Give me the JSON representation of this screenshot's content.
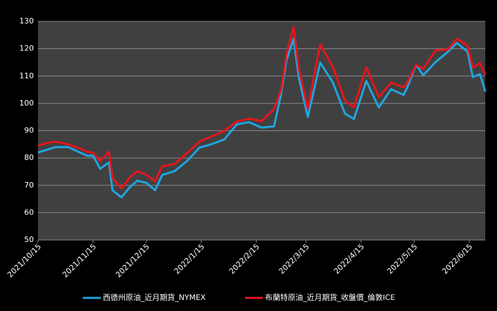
{
  "chart_data": {
    "type": "line",
    "x": [
      "2021/10/15",
      "2021/10/20",
      "2021/10/25",
      "2021/11/01",
      "2021/11/08",
      "2021/11/12",
      "2021/11/15",
      "2021/11/19",
      "2021/11/24",
      "2021/11/26",
      "2021/12/01",
      "2021/12/06",
      "2021/12/10",
      "2021/12/15",
      "2021/12/20",
      "2021/12/24",
      "2021/12/31",
      "2022/01/07",
      "2022/01/14",
      "2022/01/21",
      "2022/01/28",
      "2022/02/04",
      "2022/02/11",
      "2022/02/18",
      "2022/02/25",
      "2022/03/01",
      "2022/03/04",
      "2022/03/08",
      "2022/03/11",
      "2022/03/16",
      "2022/03/23",
      "2022/03/30",
      "2022/04/06",
      "2022/04/11",
      "2022/04/18",
      "2022/04/25",
      "2022/05/02",
      "2022/05/09",
      "2022/05/11",
      "2022/05/16",
      "2022/05/20",
      "2022/05/27",
      "2022/06/03",
      "2022/06/08",
      "2022/06/14",
      "2022/06/17",
      "2022/06/21",
      "2022/06/24"
    ],
    "series": [
      {
        "name": "西德州原油_近月期貨_NYMEX",
        "color": "#1fa6e0",
        "values": [
          82,
          83,
          84,
          84,
          81.9,
          80.8,
          80.9,
          76.1,
          78.4,
          68.2,
          65.6,
          69.5,
          71.7,
          70.9,
          68.2,
          73.8,
          75.2,
          78.9,
          83.8,
          85.1,
          86.8,
          92.3,
          93.1,
          91.1,
          91.6,
          103.4,
          115.7,
          123.7,
          109.3,
          95,
          114.9,
          107.8,
          96.2,
          94.3,
          108.2,
          98.5,
          105.2,
          103.1,
          105.7,
          114.2,
          110.3,
          115.1,
          118.9,
          122.1,
          118.9,
          109.6,
          110.7,
          104.3
        ]
      },
      {
        "name": "布蘭特原油_近月期貨_收盤價_倫敦ICE",
        "color": "#e8141c",
        "values": [
          84.5,
          85.5,
          86,
          85,
          83.4,
          82.2,
          82,
          78.9,
          82.3,
          72.7,
          68.9,
          73,
          75.2,
          73.9,
          71.5,
          76.9,
          77.8,
          81.8,
          86,
          87.9,
          90,
          93.3,
          94.4,
          93.5,
          97.9,
          104.9,
          118.1,
          127.98,
          112.7,
          98,
          121.6,
          113.5,
          101,
          98.5,
          113.2,
          102.3,
          107.6,
          105.9,
          107.5,
          114.2,
          112.6,
          119.4,
          119.7,
          123.6,
          121.2,
          113.1,
          114.7,
          110.5
        ]
      }
    ],
    "xlim": [
      "2021/10/15",
      "2022/06/24"
    ],
    "xticks": [
      "2021/10/15",
      "2021/11/15",
      "2021/12/15",
      "2022/1/15",
      "2022/2/15",
      "2022/3/15",
      "2022/4/15",
      "2022/5/15",
      "2022/6/15"
    ],
    "ylim": [
      50,
      130
    ],
    "yticks": [
      50,
      60,
      70,
      80,
      90,
      100,
      110,
      120,
      130
    ],
    "grid": true,
    "legend": "bottom"
  }
}
